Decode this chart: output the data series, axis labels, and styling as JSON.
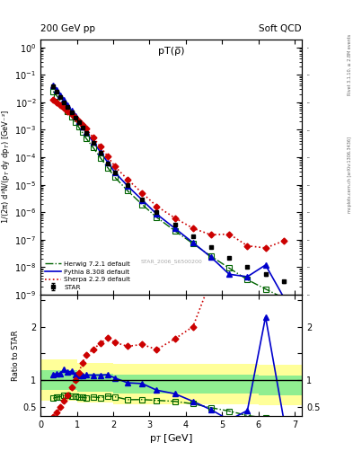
{
  "title_left": "200 GeV pp",
  "title_right": "Soft QCD",
  "plot_title": "pT(ρ̅)",
  "watermark": "STAR_2006_S6500200",
  "right_label1": "mcplots.cern.ch [arXiv:1306.3436]",
  "right_label2": "Rivet 3.1.10, ≥ 2.8M events",
  "xlabel": "p$_T$ [GeV]",
  "ylabel": "1/(2π) d²N/(p$_T$ dy dp$_T$) [GeV⁻²]",
  "ratio_ylabel": "Ratio to STAR",
  "star_x": [
    0.35,
    0.45,
    0.55,
    0.65,
    0.75,
    0.85,
    0.95,
    1.05,
    1.15,
    1.25,
    1.45,
    1.65,
    1.85,
    2.05,
    2.4,
    2.8,
    3.2,
    3.7,
    4.2,
    4.7,
    5.2,
    5.7,
    6.2,
    6.7
  ],
  "star_y": [
    0.038,
    0.025,
    0.016,
    0.01,
    0.0068,
    0.0043,
    0.0028,
    0.00185,
    0.00118,
    0.00075,
    0.00033,
    0.000142,
    6e-05,
    2.7e-05,
    9.5e-06,
    3e-06,
    1.05e-06,
    3.5e-07,
    1.3e-07,
    5.2e-08,
    2.2e-08,
    1.05e-08,
    5.5e-09,
    3e-09
  ],
  "star_yerr": [
    0.003,
    0.002,
    0.001,
    0.0008,
    0.0005,
    0.0003,
    0.0002,
    0.00013,
    8e-05,
    5e-05,
    2e-05,
    8e-06,
    3.5e-06,
    1.5e-06,
    5e-07,
    1.5e-07,
    5e-08,
    2e-08,
    8e-09,
    3e-09,
    1.5e-09,
    8e-10,
    5e-10,
    3e-10
  ],
  "herwig_x": [
    0.35,
    0.45,
    0.55,
    0.65,
    0.75,
    0.85,
    0.95,
    1.05,
    1.15,
    1.25,
    1.45,
    1.65,
    1.85,
    2.05,
    2.4,
    2.8,
    3.2,
    3.7,
    4.2,
    4.7,
    5.2,
    5.7,
    6.2,
    6.7
  ],
  "herwig_y": [
    0.025,
    0.017,
    0.011,
    0.0072,
    0.0048,
    0.003,
    0.00195,
    0.00125,
    0.0008,
    0.0005,
    0.000225,
    9.5e-05,
    4.2e-05,
    1.85e-05,
    6e-06,
    1.9e-06,
    6.5e-07,
    2.1e-07,
    7.2e-08,
    2.5e-08,
    9.2e-09,
    3.5e-09,
    1.6e-09,
    7.5e-10
  ],
  "pythia_x": [
    0.35,
    0.45,
    0.55,
    0.65,
    0.75,
    0.85,
    0.95,
    1.05,
    1.15,
    1.25,
    1.45,
    1.65,
    1.85,
    2.05,
    2.4,
    2.8,
    3.2,
    3.7,
    4.2,
    4.7,
    5.2,
    5.7,
    6.2,
    6.7
  ],
  "pythia_y": [
    0.042,
    0.028,
    0.018,
    0.012,
    0.0078,
    0.005,
    0.0031,
    0.002,
    0.00128,
    0.00082,
    0.00036,
    0.000155,
    6.6e-05,
    2.8e-05,
    9e-06,
    2.8e-06,
    8.5e-07,
    2.6e-07,
    7.8e-08,
    2.3e-08,
    5.5e-09,
    4.5e-09,
    1.2e-08,
    8e-10
  ],
  "sherpa_x": [
    0.35,
    0.45,
    0.55,
    0.65,
    0.75,
    0.85,
    0.95,
    1.05,
    1.15,
    1.25,
    1.45,
    1.65,
    1.85,
    2.05,
    2.4,
    2.8,
    3.2,
    3.7,
    4.2,
    4.7,
    5.2,
    5.7,
    6.2,
    6.7
  ],
  "sherpa_y": [
    0.012,
    0.01,
    0.008,
    0.0062,
    0.0048,
    0.0037,
    0.0028,
    0.0021,
    0.00155,
    0.0011,
    0.00052,
    0.00024,
    0.000107,
    4.6e-05,
    1.55e-05,
    5e-06,
    1.65e-06,
    6.2e-07,
    2.6e-07,
    1.5e-07,
    1.6e-07,
    6e-08,
    5e-08,
    9e-08
  ],
  "band_x_edges": [
    0.0,
    0.5,
    1.0,
    1.5,
    2.0,
    2.5,
    3.0,
    3.5,
    4.0,
    4.5,
    5.0,
    5.5,
    6.0,
    6.5,
    7.2
  ],
  "band_inner_low": [
    0.82,
    0.82,
    0.78,
    0.78,
    0.75,
    0.75,
    0.75,
    0.75,
    0.75,
    0.75,
    0.75,
    0.75,
    0.72,
    0.72,
    0.72
  ],
  "band_inner_high": [
    1.18,
    1.18,
    1.12,
    1.12,
    1.1,
    1.1,
    1.1,
    1.1,
    1.1,
    1.1,
    1.1,
    1.1,
    1.08,
    1.08,
    1.08
  ],
  "band_outer_low": [
    0.62,
    0.62,
    0.58,
    0.58,
    0.55,
    0.55,
    0.55,
    0.55,
    0.55,
    0.55,
    0.55,
    0.55,
    0.52,
    0.52,
    0.52
  ],
  "band_outer_high": [
    1.38,
    1.38,
    1.32,
    1.32,
    1.3,
    1.3,
    1.3,
    1.3,
    1.3,
    1.3,
    1.3,
    1.3,
    1.28,
    1.28,
    1.28
  ],
  "color_star": "#000000",
  "color_herwig": "#006400",
  "color_pythia": "#0000cc",
  "color_sherpa": "#cc0000",
  "color_band_inner": "#90ee90",
  "color_band_outer": "#ffff99",
  "ylim_main": [
    1e-09,
    2.0
  ],
  "ylim_ratio": [
    0.32,
    2.6
  ],
  "xlim": [
    0.0,
    7.2
  ]
}
